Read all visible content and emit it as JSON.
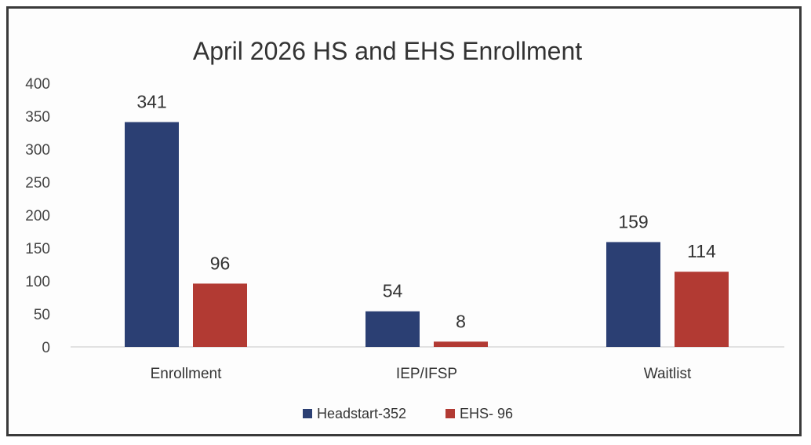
{
  "chart_data": {
    "type": "bar",
    "title": "April 2026 HS and EHS Enrollment",
    "categories": [
      "Enrollment",
      "IEP/IFSP",
      "Waitlist"
    ],
    "series": [
      {
        "name": "Headstart-352",
        "values": [
          341,
          54,
          159
        ],
        "color": "#2b3f73"
      },
      {
        "name": "EHS- 96",
        "values": [
          96,
          8,
          114
        ],
        "color": "#b23a33"
      }
    ],
    "y_ticks": [
      "0",
      "50",
      "100",
      "150",
      "200",
      "250",
      "300",
      "350",
      "400"
    ],
    "ylim": [
      0,
      400
    ],
    "grid": false,
    "legend": "bottom",
    "data_labels": true
  }
}
